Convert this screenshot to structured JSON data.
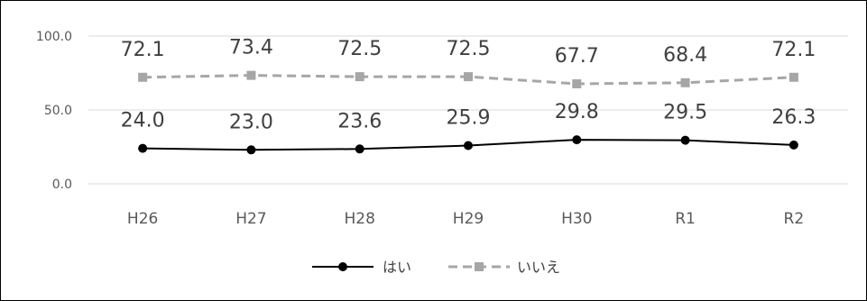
{
  "chart_data": {
    "type": "line",
    "title": "",
    "xlabel": "",
    "ylabel": "",
    "categories": [
      "H26",
      "H27",
      "H28",
      "H29",
      "H30",
      "R1",
      "R2"
    ],
    "ylim": [
      0,
      100
    ],
    "y_ticks": [
      "0.0",
      "50.0",
      "100.0"
    ],
    "grid": true,
    "legend_position": "bottom",
    "series": [
      {
        "name": "はい",
        "values": [
          24.0,
          23.0,
          23.6,
          25.9,
          29.8,
          29.5,
          26.3
        ],
        "labels": [
          "24.0",
          "23.0",
          "23.6",
          "25.9",
          "29.8",
          "29.5",
          "26.3"
        ],
        "color": "#000000",
        "marker": "circle",
        "line": "solid"
      },
      {
        "name": "いいえ",
        "values": [
          72.1,
          73.4,
          72.5,
          72.5,
          67.7,
          68.4,
          72.1
        ],
        "labels": [
          "72.1",
          "73.4",
          "72.5",
          "72.5",
          "67.7",
          "68.4",
          "72.1"
        ],
        "color": "#a6a6a6",
        "marker": "square",
        "line": "dashed"
      }
    ]
  }
}
